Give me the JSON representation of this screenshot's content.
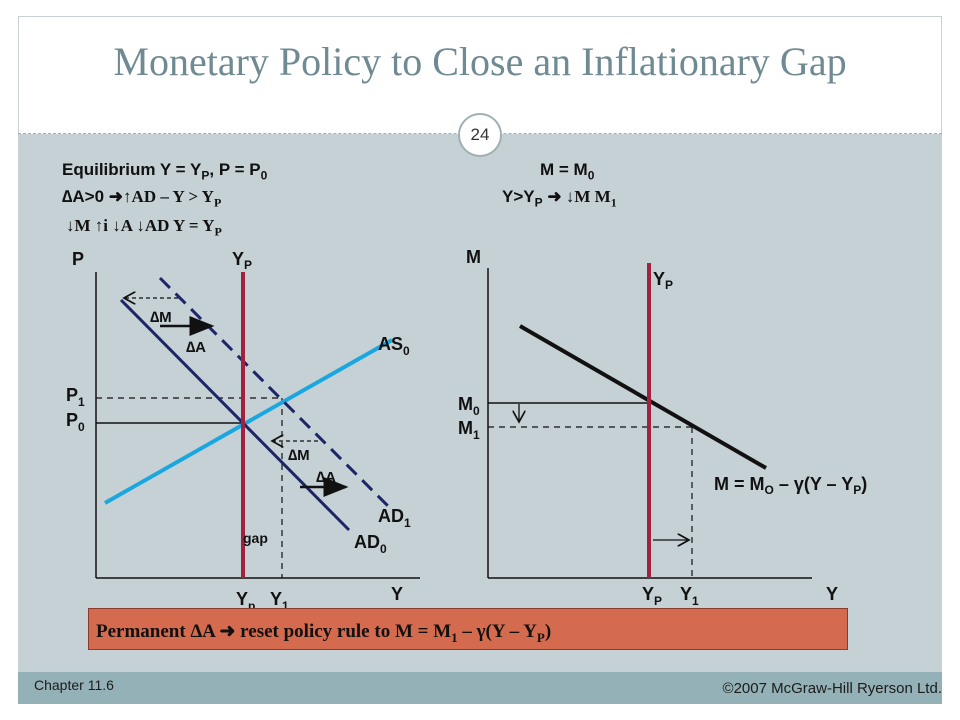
{
  "title": "Monetary Policy to Close an Inflationary Gap",
  "slide_number": "24",
  "footer": {
    "chapter": "Chapter 11.6",
    "copyright": "©2007 McGraw-Hill Ryerson Ltd."
  },
  "left_text": {
    "line1_pre": "Equilibrium Y = Y",
    "line1_sub": "P",
    "line1_mid": ", P = P",
    "line1_sub2": "0",
    "line2_pre": "∆A>0 ",
    "line2_post": "↑AD – Y > Y",
    "line2_sub": "P",
    "line3": "↓M  ↑i  ↓A  ↓AD  Y = Y",
    "line3_sub": "P"
  },
  "right_text": {
    "line1_pre": "M = M",
    "line1_sub": "0",
    "line2_pre": "Y>Y",
    "line2_sub": "P",
    "line2_post": " ↓M  M",
    "line2_sub2": "1"
  },
  "left_graph": {
    "axis_p": "P",
    "axis_y": "Y",
    "yp_top": "Y",
    "yp_top_sub": "P",
    "p1": "P",
    "p1_sub": "1",
    "p0": "P",
    "p0_sub": "0",
    "dm": "∆M",
    "da": "∆A",
    "dm2": "∆M",
    "da2": "∆A",
    "as0": "AS",
    "as0_sub": "0",
    "ad1": "AD",
    "ad1_sub": "1",
    "ad0": "AD",
    "ad0_sub": "0",
    "gap": "gap",
    "yp_bottom": "Y",
    "yp_bottom_sub": "p",
    "y1": "Y",
    "y1_sub": "1"
  },
  "right_graph": {
    "axis_m": "M",
    "axis_y": "Y",
    "yp_top": "Y",
    "yp_top_sub": "P",
    "m0": "M",
    "m0_sub": "0",
    "m1": "M",
    "m1_sub": "1",
    "rule_pre": "M = M",
    "rule_sub": "O",
    "rule_mid": " – γ(Y – Y",
    "rule_sub2": "P",
    "rule_end": ")",
    "yp_bottom": "Y",
    "yp_bottom_sub": "P",
    "y1": "Y",
    "y1_sub": "1"
  },
  "banner": {
    "pre": "Permanent ∆A ",
    "post": " reset policy rule to M = M",
    "sub": "1",
    "mid": " – γ(Y – Y",
    "sub2": "P",
    "end": ")"
  },
  "colors": {
    "yp_line": "#a3203f",
    "as_line": "#1aa7e0",
    "ad_line": "#1d2566",
    "rule_line": "#111111",
    "banner": "#d46a4e"
  }
}
